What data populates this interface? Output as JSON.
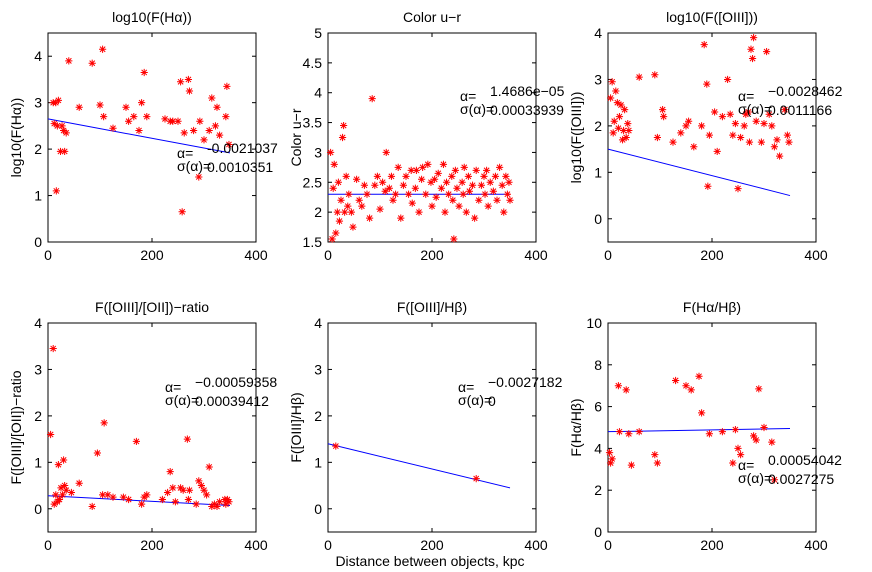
{
  "figure": {
    "xlabel": "Distance between objects, kpc"
  },
  "colors": {
    "marker": "#ff0000",
    "fit": "#0000ff",
    "axis": "#000000",
    "background": "#ffffff"
  },
  "chart_data": [
    {
      "type": "scatter",
      "title": "log10(F(Hα))",
      "xlabel": "",
      "ylabel": "log10(F(Hα))",
      "xlim": [
        0,
        400
      ],
      "ylim": [
        0,
        4.5
      ],
      "xticks": [
        0,
        200,
        400
      ],
      "yticks": [
        0,
        1,
        2,
        3,
        4
      ],
      "fit": {
        "x": [
          0,
          350
        ],
        "y": [
          2.65,
          1.92
        ]
      },
      "stats": {
        "alpha_label": "α=",
        "alpha": "-0.0021037",
        "sigma_label": "σ(α)=",
        "sigma": "0.0010351"
      },
      "points": [
        [
          10,
          3.0
        ],
        [
          12,
          2.55
        ],
        [
          15,
          3.0
        ],
        [
          16,
          1.1
        ],
        [
          18,
          2.5
        ],
        [
          20,
          3.05
        ],
        [
          24,
          1.95
        ],
        [
          27,
          2.5
        ],
        [
          30,
          2.4
        ],
        [
          32,
          1.95
        ],
        [
          35,
          2.35
        ],
        [
          40,
          3.9
        ],
        [
          60,
          2.9
        ],
        [
          85,
          3.85
        ],
        [
          100,
          2.95
        ],
        [
          105,
          4.15
        ],
        [
          107,
          2.7
        ],
        [
          125,
          2.45
        ],
        [
          150,
          2.9
        ],
        [
          155,
          2.6
        ],
        [
          165,
          2.7
        ],
        [
          175,
          2.4
        ],
        [
          180,
          3.0
        ],
        [
          185,
          3.65
        ],
        [
          190,
          2.7
        ],
        [
          225,
          2.65
        ],
        [
          235,
          2.6
        ],
        [
          240,
          2.6
        ],
        [
          250,
          2.6
        ],
        [
          255,
          3.45
        ],
        [
          258,
          0.65
        ],
        [
          262,
          2.35
        ],
        [
          270,
          3.5
        ],
        [
          272,
          3.25
        ],
        [
          280,
          2.4
        ],
        [
          290,
          1.4
        ],
        [
          292,
          2.6
        ],
        [
          300,
          2.2
        ],
        [
          310,
          2.4
        ],
        [
          315,
          3.1
        ],
        [
          322,
          2.5
        ],
        [
          325,
          2.9
        ],
        [
          330,
          2.3
        ],
        [
          342,
          2.7
        ],
        [
          344,
          3.35
        ],
        [
          348,
          2.1
        ]
      ]
    },
    {
      "type": "scatter",
      "title": "Color u−r",
      "xlabel": "",
      "ylabel": "Color u−r",
      "xlim": [
        0,
        400
      ],
      "ylim": [
        1.5,
        5
      ],
      "xticks": [
        0,
        200,
        400
      ],
      "yticks": [
        1.5,
        2,
        2.5,
        3,
        3.5,
        4,
        4.5,
        5
      ],
      "fit": {
        "x": [
          0,
          350
        ],
        "y": [
          2.3,
          2.3
        ]
      },
      "stats": {
        "alpha_label": "α=",
        "alpha": "1.4686e−05",
        "sigma_label": "σ(α)=",
        "sigma": "0.00033939"
      },
      "points": [
        [
          5,
          3.0
        ],
        [
          8,
          1.55
        ],
        [
          10,
          2.4
        ],
        [
          12,
          2.8
        ],
        [
          15,
          1.65
        ],
        [
          18,
          2.0
        ],
        [
          20,
          2.5
        ],
        [
          22,
          1.85
        ],
        [
          25,
          2.2
        ],
        [
          28,
          3.25
        ],
        [
          30,
          3.45
        ],
        [
          32,
          2.0
        ],
        [
          35,
          2.6
        ],
        [
          38,
          2.1
        ],
        [
          40,
          2.3
        ],
        [
          45,
          2.0
        ],
        [
          48,
          1.75
        ],
        [
          55,
          2.55
        ],
        [
          60,
          2.2
        ],
        [
          65,
          2.1
        ],
        [
          70,
          2.45
        ],
        [
          75,
          2.3
        ],
        [
          80,
          1.9
        ],
        [
          85,
          3.9
        ],
        [
          90,
          2.45
        ],
        [
          95,
          2.6
        ],
        [
          100,
          2.05
        ],
        [
          105,
          2.5
        ],
        [
          110,
          2.35
        ],
        [
          112,
          3.0
        ],
        [
          118,
          2.4
        ],
        [
          122,
          2.6
        ],
        [
          125,
          2.2
        ],
        [
          130,
          2.3
        ],
        [
          135,
          2.75
        ],
        [
          140,
          1.9
        ],
        [
          145,
          2.45
        ],
        [
          150,
          2.6
        ],
        [
          155,
          2.3
        ],
        [
          160,
          2.7
        ],
        [
          162,
          2.15
        ],
        [
          168,
          2.4
        ],
        [
          170,
          2.7
        ],
        [
          175,
          2.0
        ],
        [
          180,
          2.55
        ],
        [
          182,
          2.75
        ],
        [
          188,
          2.3
        ],
        [
          192,
          2.8
        ],
        [
          198,
          2.5
        ],
        [
          200,
          2.1
        ],
        [
          205,
          2.55
        ],
        [
          208,
          2.25
        ],
        [
          212,
          2.65
        ],
        [
          218,
          2.4
        ],
        [
          222,
          2.8
        ],
        [
          225,
          2.0
        ],
        [
          228,
          2.5
        ],
        [
          232,
          2.3
        ],
        [
          238,
          2.6
        ],
        [
          240,
          2.2
        ],
        [
          242,
          1.55
        ],
        [
          245,
          2.7
        ],
        [
          248,
          2.4
        ],
        [
          252,
          2.1
        ],
        [
          258,
          2.5
        ],
        [
          260,
          2.3
        ],
        [
          262,
          2.75
        ],
        [
          266,
          2.0
        ],
        [
          270,
          2.6
        ],
        [
          272,
          2.35
        ],
        [
          278,
          2.45
        ],
        [
          282,
          1.9
        ],
        [
          285,
          2.7
        ],
        [
          290,
          2.2
        ],
        [
          295,
          2.45
        ],
        [
          300,
          2.6
        ],
        [
          302,
          2.3
        ],
        [
          305,
          2.7
        ],
        [
          308,
          2.1
        ],
        [
          312,
          2.5
        ],
        [
          318,
          2.35
        ],
        [
          322,
          2.6
        ],
        [
          325,
          2.2
        ],
        [
          330,
          2.75
        ],
        [
          335,
          2.45
        ],
        [
          338,
          2.0
        ],
        [
          342,
          2.6
        ],
        [
          345,
          2.3
        ],
        [
          348,
          2.5
        ],
        [
          350,
          2.2
        ]
      ]
    },
    {
      "type": "scatter",
      "title": "log10(F([OIII]))",
      "xlabel": "",
      "ylabel": "log10(F([OIII]))",
      "xlim": [
        0,
        400
      ],
      "ylim": [
        -0.5,
        4
      ],
      "xticks": [
        0,
        200,
        400
      ],
      "yticks": [
        0,
        1,
        2,
        3,
        4
      ],
      "fit": {
        "x": [
          0,
          350
        ],
        "y": [
          1.5,
          0.5
        ]
      },
      "stats": {
        "alpha_label": "α=",
        "alpha": "−0.0028462",
        "sigma_label": "σ(α)=",
        "sigma": "0.0011166"
      },
      "points": [
        [
          5,
          2.6
        ],
        [
          8,
          2.95
        ],
        [
          10,
          1.85
        ],
        [
          12,
          2.1
        ],
        [
          15,
          2.75
        ],
        [
          18,
          2.5
        ],
        [
          20,
          1.95
        ],
        [
          22,
          2.2
        ],
        [
          25,
          2.45
        ],
        [
          28,
          1.7
        ],
        [
          30,
          1.9
        ],
        [
          32,
          2.35
        ],
        [
          35,
          1.75
        ],
        [
          38,
          2.05
        ],
        [
          40,
          1.9
        ],
        [
          60,
          3.05
        ],
        [
          90,
          3.1
        ],
        [
          95,
          1.75
        ],
        [
          105,
          2.35
        ],
        [
          107,
          2.2
        ],
        [
          125,
          1.65
        ],
        [
          140,
          1.85
        ],
        [
          150,
          2.0
        ],
        [
          155,
          2.1
        ],
        [
          165,
          1.55
        ],
        [
          180,
          2.0
        ],
        [
          185,
          3.75
        ],
        [
          190,
          2.9
        ],
        [
          192,
          0.7
        ],
        [
          195,
          1.8
        ],
        [
          205,
          2.3
        ],
        [
          210,
          1.45
        ],
        [
          220,
          2.2
        ],
        [
          230,
          3.0
        ],
        [
          235,
          2.25
        ],
        [
          240,
          1.8
        ],
        [
          245,
          2.05
        ],
        [
          250,
          0.65
        ],
        [
          255,
          1.75
        ],
        [
          262,
          2.0
        ],
        [
          265,
          2.25
        ],
        [
          270,
          2.3
        ],
        [
          272,
          1.65
        ],
        [
          275,
          3.65
        ],
        [
          278,
          3.45
        ],
        [
          280,
          3.9
        ],
        [
          285,
          2.1
        ],
        [
          295,
          1.65
        ],
        [
          300,
          2.05
        ],
        [
          305,
          3.6
        ],
        [
          310,
          2.25
        ],
        [
          315,
          2.0
        ],
        [
          320,
          1.55
        ],
        [
          325,
          1.7
        ],
        [
          330,
          1.35
        ],
        [
          340,
          2.35
        ],
        [
          345,
          1.8
        ],
        [
          348,
          1.65
        ]
      ]
    },
    {
      "type": "scatter",
      "title": "F([OIII]/[OII])−ratio",
      "xlabel": "",
      "ylabel": "F([OIII]/[OII])−ratio",
      "xlim": [
        0,
        400
      ],
      "ylim": [
        -0.5,
        4
      ],
      "xticks": [
        0,
        200,
        400
      ],
      "yticks": [
        0,
        1,
        2,
        3,
        4
      ],
      "fit": {
        "x": [
          0,
          350
        ],
        "y": [
          0.28,
          0.07
        ]
      },
      "stats": {
        "alpha_label": "α=",
        "alpha": "−0.00059358",
        "sigma_label": "σ(α)=",
        "sigma": "0.00039412"
      },
      "points": [
        [
          5,
          1.6
        ],
        [
          10,
          3.45
        ],
        [
          12,
          0.1
        ],
        [
          15,
          0.3
        ],
        [
          18,
          0.15
        ],
        [
          20,
          0.95
        ],
        [
          22,
          0.2
        ],
        [
          25,
          0.45
        ],
        [
          28,
          0.3
        ],
        [
          30,
          1.05
        ],
        [
          32,
          0.5
        ],
        [
          35,
          0.4
        ],
        [
          45,
          0.35
        ],
        [
          60,
          0.55
        ],
        [
          85,
          0.05
        ],
        [
          95,
          1.2
        ],
        [
          105,
          0.3
        ],
        [
          108,
          1.85
        ],
        [
          115,
          0.3
        ],
        [
          125,
          0.25
        ],
        [
          145,
          0.25
        ],
        [
          155,
          0.2
        ],
        [
          170,
          1.45
        ],
        [
          180,
          0.1
        ],
        [
          185,
          0.25
        ],
        [
          190,
          0.3
        ],
        [
          220,
          0.2
        ],
        [
          230,
          0.35
        ],
        [
          235,
          0.8
        ],
        [
          240,
          0.45
        ],
        [
          245,
          0.15
        ],
        [
          255,
          0.45
        ],
        [
          260,
          0.4
        ],
        [
          268,
          1.5
        ],
        [
          270,
          0.2
        ],
        [
          272,
          0.4
        ],
        [
          285,
          0.1
        ],
        [
          290,
          0.6
        ],
        [
          295,
          0.5
        ],
        [
          300,
          0.4
        ],
        [
          305,
          0.3
        ],
        [
          310,
          0.9
        ],
        [
          315,
          0.05
        ],
        [
          320,
          0.1
        ],
        [
          325,
          0.05
        ],
        [
          330,
          0.15
        ],
        [
          340,
          0.2
        ],
        [
          342,
          0.1
        ],
        [
          345,
          0.2
        ],
        [
          348,
          0.15
        ]
      ]
    },
    {
      "type": "scatter",
      "title": "F([OIII]/Hβ)",
      "xlabel": "Distance between objects, kpc",
      "ylabel": "F([OIII]/Hβ)",
      "xlim": [
        0,
        400
      ],
      "ylim": [
        -0.5,
        4
      ],
      "xticks": [
        0,
        200,
        400
      ],
      "yticks": [
        0,
        1,
        2,
        3,
        4
      ],
      "fit": {
        "x": [
          0,
          350
        ],
        "y": [
          1.4,
          0.45
        ]
      },
      "stats": {
        "alpha_label": "α=",
        "alpha": "−0.0027182",
        "sigma_label": "σ(α)=",
        "sigma": "0"
      },
      "points": [
        [
          15,
          1.35
        ],
        [
          285,
          0.65
        ]
      ]
    },
    {
      "type": "scatter",
      "title": "F(Hα/Hβ)",
      "xlabel": "",
      "ylabel": "F(Hα/Hβ)",
      "xlim": [
        0,
        400
      ],
      "ylim": [
        0,
        10
      ],
      "xticks": [
        0,
        200,
        400
      ],
      "yticks": [
        0,
        2,
        4,
        6,
        8,
        10
      ],
      "fit": {
        "x": [
          0,
          350
        ],
        "y": [
          4.8,
          4.95
        ]
      },
      "stats": {
        "alpha_label": "α=",
        "alpha": "0.00054042",
        "sigma_label": "σ(α)=",
        "sigma": "0.0027275"
      },
      "points": [
        [
          3,
          3.8
        ],
        [
          5,
          3.3
        ],
        [
          8,
          3.5
        ],
        [
          20,
          7.0
        ],
        [
          22,
          4.8
        ],
        [
          35,
          6.8
        ],
        [
          40,
          4.7
        ],
        [
          45,
          3.2
        ],
        [
          60,
          4.8
        ],
        [
          90,
          3.7
        ],
        [
          95,
          3.3
        ],
        [
          130,
          7.25
        ],
        [
          150,
          7.0
        ],
        [
          160,
          6.8
        ],
        [
          175,
          7.45
        ],
        [
          180,
          5.7
        ],
        [
          195,
          4.7
        ],
        [
          220,
          4.8
        ],
        [
          240,
          3.3
        ],
        [
          245,
          4.9
        ],
        [
          250,
          4.0
        ],
        [
          255,
          3.7
        ],
        [
          280,
          4.6
        ],
        [
          285,
          4.4
        ],
        [
          290,
          6.85
        ],
        [
          300,
          5.0
        ],
        [
          315,
          4.3
        ],
        [
          320,
          2.5
        ]
      ]
    }
  ]
}
